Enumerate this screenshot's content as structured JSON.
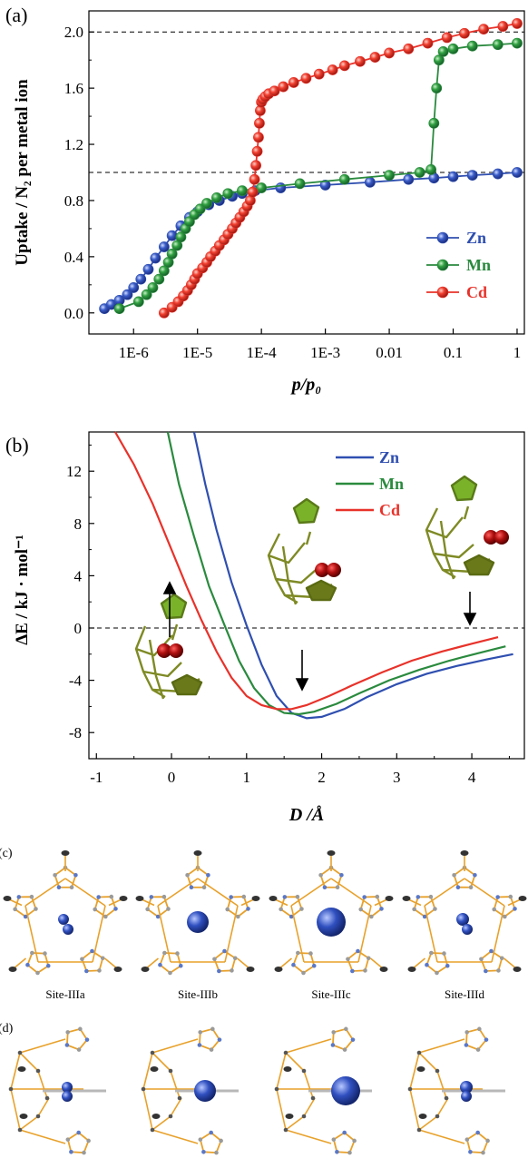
{
  "chart_data": [
    {
      "type": "scatter",
      "panel_label": "(a)",
      "xlabel": "p/p₀",
      "ylabel": "Uptake / N₂ per metal ion",
      "x_scale": "log",
      "xlim": [
        2e-07,
        1.3
      ],
      "ylim": [
        -0.15,
        2.15
      ],
      "x_tick_values": [
        1e-06,
        1e-05,
        0.0001,
        0.001,
        0.01,
        0.1,
        1
      ],
      "x_tick_labels": [
        "1E-6",
        "1E-5",
        "1E-4",
        "1E-3",
        "0.01",
        "0.1",
        "1"
      ],
      "y_tick_values": [
        0.0,
        0.4,
        0.8,
        1.2,
        1.6,
        2.0
      ],
      "y_tick_labels": [
        "0.0",
        "0.4",
        "0.8",
        "1.2",
        "1.6",
        "2.0"
      ],
      "reference_lines_y": [
        1.0,
        2.0
      ],
      "legend_position": "lower-right",
      "series": [
        {
          "name": "Zn",
          "color": "#2f4fb0",
          "x": [
            3.5e-07,
            4.5e-07,
            6e-07,
            8e-07,
            1e-06,
            1.3e-06,
            1.7e-06,
            2.2e-06,
            3e-06,
            4e-06,
            5.5e-06,
            7.5e-06,
            1e-05,
            1.5e-05,
            2.2e-05,
            3.5e-05,
            5e-05,
            8e-05,
            0.0002,
            0.001,
            0.005,
            0.02,
            0.05,
            0.1,
            0.2,
            0.5,
            1.0
          ],
          "y": [
            0.03,
            0.06,
            0.09,
            0.13,
            0.18,
            0.24,
            0.31,
            0.39,
            0.47,
            0.55,
            0.62,
            0.68,
            0.72,
            0.77,
            0.8,
            0.83,
            0.85,
            0.87,
            0.89,
            0.91,
            0.93,
            0.95,
            0.96,
            0.97,
            0.98,
            0.99,
            1.0
          ]
        },
        {
          "name": "Mn",
          "color": "#2a8a3e",
          "x": [
            6e-07,
            1.2e-06,
            1.6e-06,
            2e-06,
            2.5e-06,
            3e-06,
            3.5e-06,
            4e-06,
            4.8e-06,
            5.5e-06,
            6.5e-06,
            7.5e-06,
            9e-06,
            1.1e-05,
            1.4e-05,
            2e-05,
            3e-05,
            5e-05,
            0.0001,
            0.0004,
            0.002,
            0.01,
            0.03,
            0.045,
            0.05,
            0.055,
            0.06,
            0.07,
            0.1,
            0.2,
            0.5,
            1.0
          ],
          "y": [
            0.03,
            0.08,
            0.13,
            0.18,
            0.24,
            0.3,
            0.36,
            0.42,
            0.48,
            0.54,
            0.6,
            0.65,
            0.7,
            0.74,
            0.78,
            0.82,
            0.85,
            0.87,
            0.89,
            0.92,
            0.95,
            0.98,
            1.0,
            1.02,
            1.35,
            1.6,
            1.8,
            1.86,
            1.88,
            1.9,
            1.91,
            1.92
          ]
        },
        {
          "name": "Cd",
          "color": "#e8322a",
          "x": [
            3e-06,
            4e-06,
            5e-06,
            6e-06,
            7e-06,
            8e-06,
            9e-06,
            1e-05,
            1.2e-05,
            1.4e-05,
            1.6e-05,
            1.9e-05,
            2.2e-05,
            2.6e-05,
            3e-05,
            3.5e-05,
            4e-05,
            4.6e-05,
            5.3e-05,
            6e-05,
            6.7e-05,
            7.3e-05,
            7.8e-05,
            8.2e-05,
            8.6e-05,
            9e-05,
            9.3e-05,
            9.6e-05,
            0.0001,
            0.000105,
            0.000115,
            0.00013,
            0.00016,
            0.00022,
            0.00032,
            0.0005,
            0.0008,
            0.0013,
            0.002,
            0.0035,
            0.006,
            0.01,
            0.02,
            0.04,
            0.08,
            0.15,
            0.3,
            0.6,
            1.0
          ],
          "y": [
            0.0,
            0.04,
            0.08,
            0.12,
            0.16,
            0.2,
            0.24,
            0.28,
            0.32,
            0.36,
            0.4,
            0.44,
            0.48,
            0.52,
            0.56,
            0.6,
            0.64,
            0.68,
            0.72,
            0.76,
            0.8,
            0.86,
            0.95,
            1.05,
            1.15,
            1.25,
            1.35,
            1.44,
            1.5,
            1.52,
            1.54,
            1.56,
            1.58,
            1.61,
            1.64,
            1.67,
            1.7,
            1.73,
            1.76,
            1.79,
            1.82,
            1.85,
            1.88,
            1.92,
            1.96,
            1.99,
            2.02,
            2.04,
            2.06
          ]
        }
      ]
    },
    {
      "type": "line",
      "panel_label": "(b)",
      "xlabel": "D /Å",
      "ylabel": "ΔE / kJ · mol⁻¹",
      "xlim": [
        -1.1,
        4.7
      ],
      "ylim": [
        -10,
        15
      ],
      "x_tick_values": [
        -1,
        0,
        1,
        2,
        3,
        4
      ],
      "x_tick_labels": [
        "-1",
        "0",
        "1",
        "2",
        "3",
        "4"
      ],
      "y_tick_values": [
        -8,
        -4,
        0,
        4,
        8,
        12
      ],
      "y_tick_labels": [
        "-8",
        "-4",
        "0",
        "4",
        "8",
        "12"
      ],
      "reference_lines_y": [
        0
      ],
      "legend_position": "top-right",
      "series": [
        {
          "name": "Zn",
          "color": "#2f4fb0",
          "x": [
            0.3,
            0.45,
            0.6,
            0.8,
            1.0,
            1.2,
            1.4,
            1.6,
            1.8,
            2.0,
            2.3,
            2.6,
            3.0,
            3.4,
            3.8,
            4.2,
            4.55
          ],
          "y": [
            15,
            11,
            7.5,
            3.5,
            0.2,
            -2.8,
            -5.2,
            -6.5,
            -6.9,
            -6.8,
            -6.2,
            -5.3,
            -4.3,
            -3.5,
            -2.9,
            -2.4,
            -2.0
          ]
        },
        {
          "name": "Mn",
          "color": "#2a8a3e",
          "x": [
            -0.05,
            0.1,
            0.3,
            0.5,
            0.7,
            0.9,
            1.1,
            1.3,
            1.5,
            1.7,
            1.9,
            2.2,
            2.5,
            2.9,
            3.3,
            3.7,
            4.1,
            4.45
          ],
          "y": [
            15,
            11,
            7,
            3.2,
            0.3,
            -2.5,
            -4.6,
            -5.9,
            -6.5,
            -6.6,
            -6.4,
            -5.8,
            -5.0,
            -4.0,
            -3.2,
            -2.5,
            -1.9,
            -1.4
          ]
        },
        {
          "name": "Cd",
          "color": "#e8322a",
          "x": [
            -0.75,
            -0.5,
            -0.25,
            0.0,
            0.2,
            0.4,
            0.6,
            0.8,
            1.0,
            1.2,
            1.4,
            1.6,
            1.8,
            2.1,
            2.4,
            2.8,
            3.2,
            3.6,
            4.0,
            4.35
          ],
          "y": [
            15,
            12.5,
            9.5,
            6.0,
            3.2,
            0.6,
            -1.8,
            -3.8,
            -5.2,
            -5.9,
            -6.2,
            -6.2,
            -5.9,
            -5.2,
            -4.4,
            -3.4,
            -2.5,
            -1.8,
            -1.2,
            -0.7
          ]
        }
      ]
    }
  ],
  "panels": {
    "c_label": "(c)",
    "d_label": "(d)",
    "captions": [
      "Site-IIIa",
      "Site-IIIb",
      "Site-IIIc",
      "Site-IIId"
    ]
  },
  "colors": {
    "frame_gold": "#e8a12a",
    "framework_green": "#8a9a30",
    "o2_red": "#b01818",
    "n2_blue": "#2f55c0"
  }
}
